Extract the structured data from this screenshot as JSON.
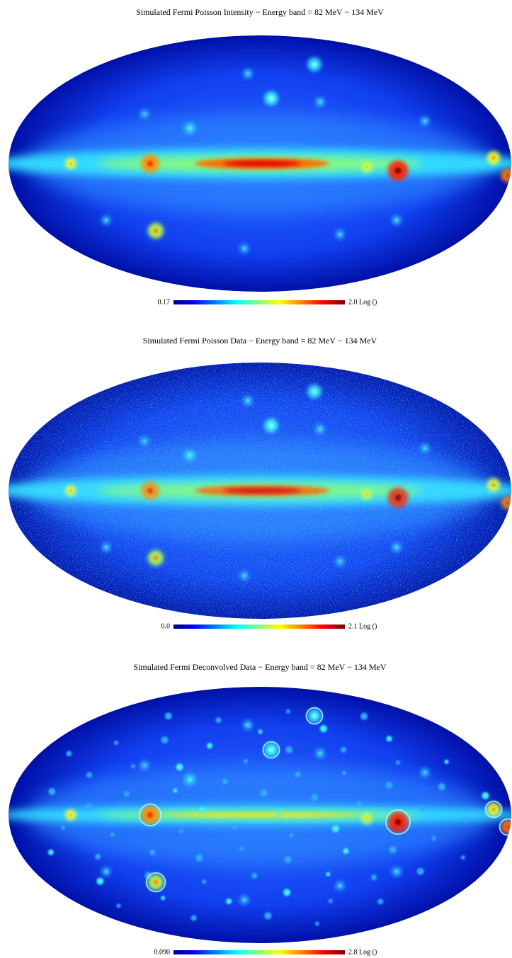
{
  "panels": [
    {
      "title": "Simulated Fermi Poisson Intensity − Energy band = 82 MeV − 134 MeV",
      "min_label": "0.17",
      "max_label": "2.0 Log ()"
    },
    {
      "title": "Simulated Fermi Poisson Data − Energy band = 82 MeV − 134 MeV",
      "min_label": "0.0",
      "max_label": "2.1 Log ()"
    },
    {
      "title": "Simulated Fermi Deconvolved Data − Energy band = 82 MeV − 134 MeV",
      "min_label": "0.090",
      "max_label": "2.8 Log ()"
    }
  ]
}
